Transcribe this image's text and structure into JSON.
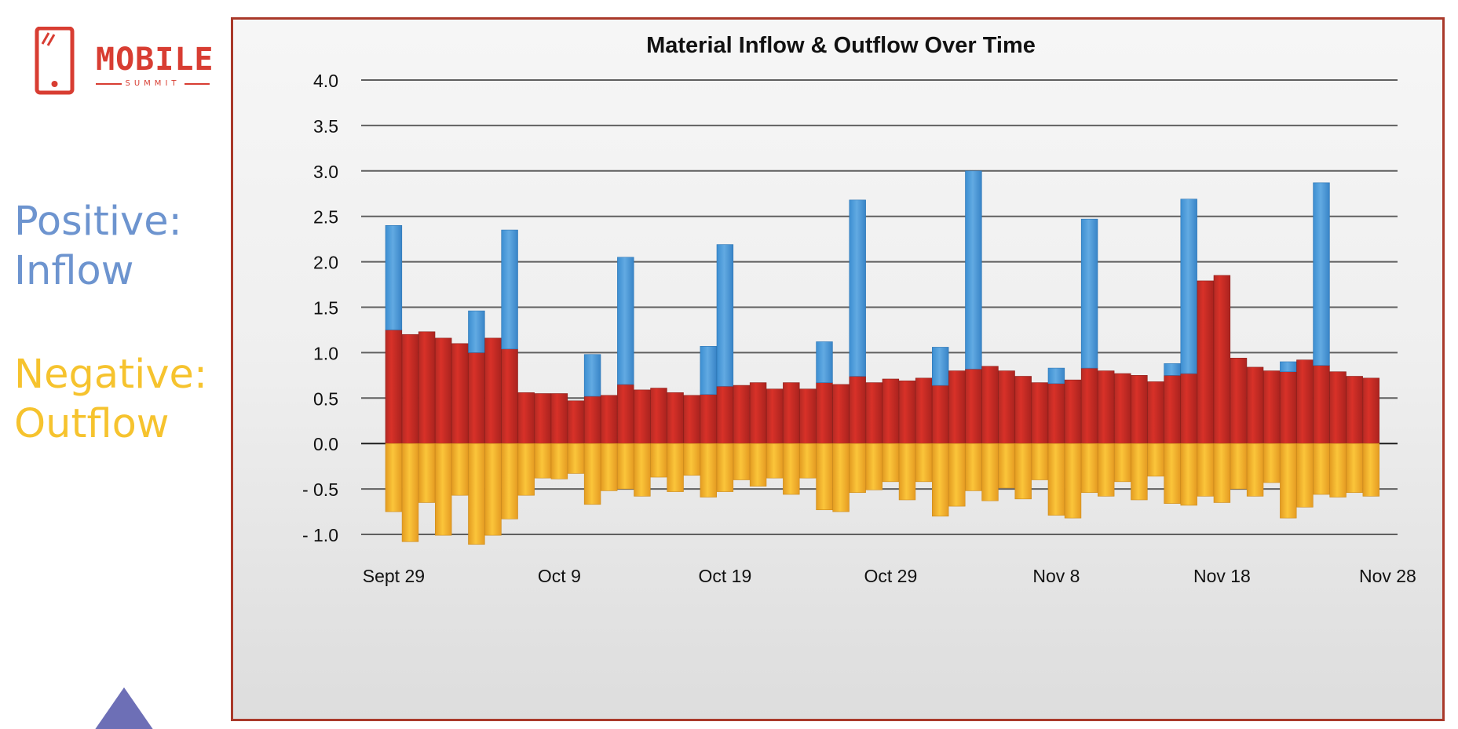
{
  "branding": {
    "logo_title": "MOBILE",
    "logo_subtitle": "SUMMIT",
    "icon": "phone-icon",
    "color": "#d83d32"
  },
  "legend_notes": {
    "positive": "Positive:\nInflow",
    "negative": "Negative:\nOutflow"
  },
  "decorations": {
    "triangle_color": "#6d6fb6"
  },
  "chart_data": {
    "type": "bar",
    "title": "Material Inflow & Outflow Over Time",
    "xlabel": "",
    "ylabel": "",
    "ylim": [
      -1.0,
      4.0
    ],
    "grid": true,
    "y_ticks": [
      {
        "value": 4.0,
        "label": "4.0"
      },
      {
        "value": 3.5,
        "label": "3.5"
      },
      {
        "value": 3.0,
        "label": "3.0"
      },
      {
        "value": 2.5,
        "label": "2.5"
      },
      {
        "value": 2.0,
        "label": "2.0"
      },
      {
        "value": 1.5,
        "label": "1.5"
      },
      {
        "value": 1.0,
        "label": "1.0"
      },
      {
        "value": 0.5,
        "label": "0.5"
      },
      {
        "value": 0.0,
        "label": "0.0"
      },
      {
        "value": -0.5,
        "label": "- 0.5"
      },
      {
        "value": -1.0,
        "label": "- 1.0"
      }
    ],
    "x_tick_labels": [
      {
        "index": 1,
        "label": "Sept 29"
      },
      {
        "index": 11,
        "label": "Oct 9"
      },
      {
        "index": 21,
        "label": "Oct 19"
      },
      {
        "index": 31,
        "label": "Oct 29"
      },
      {
        "index": 41,
        "label": "Nov 8"
      },
      {
        "index": 51,
        "label": "Nov 18"
      },
      {
        "index": 61,
        "label": "Nov 28"
      }
    ],
    "series": [
      {
        "values": [
          1.25,
          1.2,
          1.23,
          1.16,
          1.1,
          1.0,
          1.16,
          1.04,
          0.56,
          0.55,
          0.55,
          0.47,
          0.52,
          0.53,
          0.65,
          0.59,
          0.61,
          0.56,
          0.53,
          0.54,
          0.63,
          0.64,
          0.67,
          0.6,
          0.67,
          0.6,
          0.67,
          0.65,
          0.74,
          0.67,
          0.71,
          0.69,
          0.72,
          0.64,
          0.8,
          0.82,
          0.85,
          0.8,
          0.74,
          0.67,
          0.66,
          0.7,
          0.83,
          0.8,
          0.77,
          0.75,
          0.68,
          0.75,
          0.77,
          1.79,
          1.85,
          0.94,
          0.84,
          0.8,
          0.79,
          0.92,
          0.86,
          0.79,
          0.74,
          0.72
        ],
        "color": "#d83128"
      },
      {
        "values": [
          1.15,
          0,
          0,
          0,
          0,
          0.46,
          0,
          1.31,
          0,
          0,
          0,
          0,
          0.46,
          0,
          1.4,
          0,
          0,
          0,
          0,
          0.53,
          1.56,
          0,
          0,
          0,
          0,
          0,
          0.45,
          0,
          1.94,
          0,
          0,
          0,
          0,
          0.42,
          0,
          2.18,
          0,
          0,
          0,
          0,
          0.17,
          0,
          1.64,
          0,
          0,
          0,
          0,
          0.13,
          1.92,
          0,
          0,
          0,
          0,
          0,
          0.11,
          0,
          2.01,
          0,
          0,
          0
        ],
        "color": "#4f9bd7"
      },
      {
        "values": [
          -0.75,
          -1.08,
          -0.65,
          -1.01,
          -0.57,
          -1.11,
          -1.01,
          -0.83,
          -0.57,
          -0.38,
          -0.39,
          -0.33,
          -0.67,
          -0.52,
          -0.5,
          -0.58,
          -0.37,
          -0.53,
          -0.35,
          -0.59,
          -0.53,
          -0.4,
          -0.47,
          -0.38,
          -0.56,
          -0.38,
          -0.73,
          -0.75,
          -0.54,
          -0.51,
          -0.42,
          -0.62,
          -0.42,
          -0.8,
          -0.69,
          -0.52,
          -0.63,
          -0.49,
          -0.61,
          -0.4,
          -0.79,
          -0.82,
          -0.54,
          -0.58,
          -0.42,
          -0.62,
          -0.36,
          -0.66,
          -0.68,
          -0.58,
          -0.65,
          -0.5,
          -0.58,
          -0.43,
          -0.82,
          -0.7,
          -0.56,
          -0.59,
          -0.54,
          -0.58
        ],
        "color": "#f3ae2a"
      }
    ]
  }
}
